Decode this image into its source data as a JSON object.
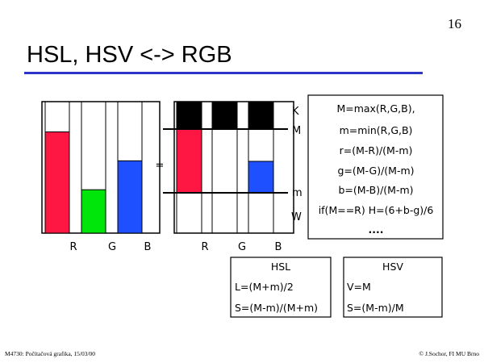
{
  "page_number": "16",
  "title": "HSL, HSV <-> RGB",
  "colors": {
    "red": "#ff1744",
    "green": "#00e60a",
    "blue": "#1e50ff",
    "black": "#000000",
    "rule": "#2b35c8"
  },
  "left_chart": {
    "labels": [
      "R",
      "G",
      "B"
    ],
    "levels": [
      0.77,
      0.33,
      0.55
    ]
  },
  "right_chart": {
    "labels": [
      "R",
      "G",
      "B"
    ]
  },
  "equals_sign": "=",
  "levels": {
    "K": "K",
    "M": "M",
    "m": "m",
    "W": "W"
  },
  "formulas": [
    "M=max(R,G,B),",
    "m=min(R,G,B)",
    "r=(M-R)/(M-m)",
    "g=(M-G)/(M-m)",
    "b=(M-B)/(M-m)",
    "if(M==R) H=(6+b-g)/6",
    "...."
  ],
  "hsl_box": {
    "header": "HSL",
    "rows": [
      "L=(M+m)/2",
      "S=(M-m)/(M+m)"
    ]
  },
  "hsv_box": {
    "header": "HSV",
    "rows": [
      "V=M",
      "S=(M-m)/M"
    ]
  },
  "footer": {
    "left": "M4730: Počítačová grafika, 15/03/00",
    "right": "© J.Sochor, FI MU Brno"
  }
}
